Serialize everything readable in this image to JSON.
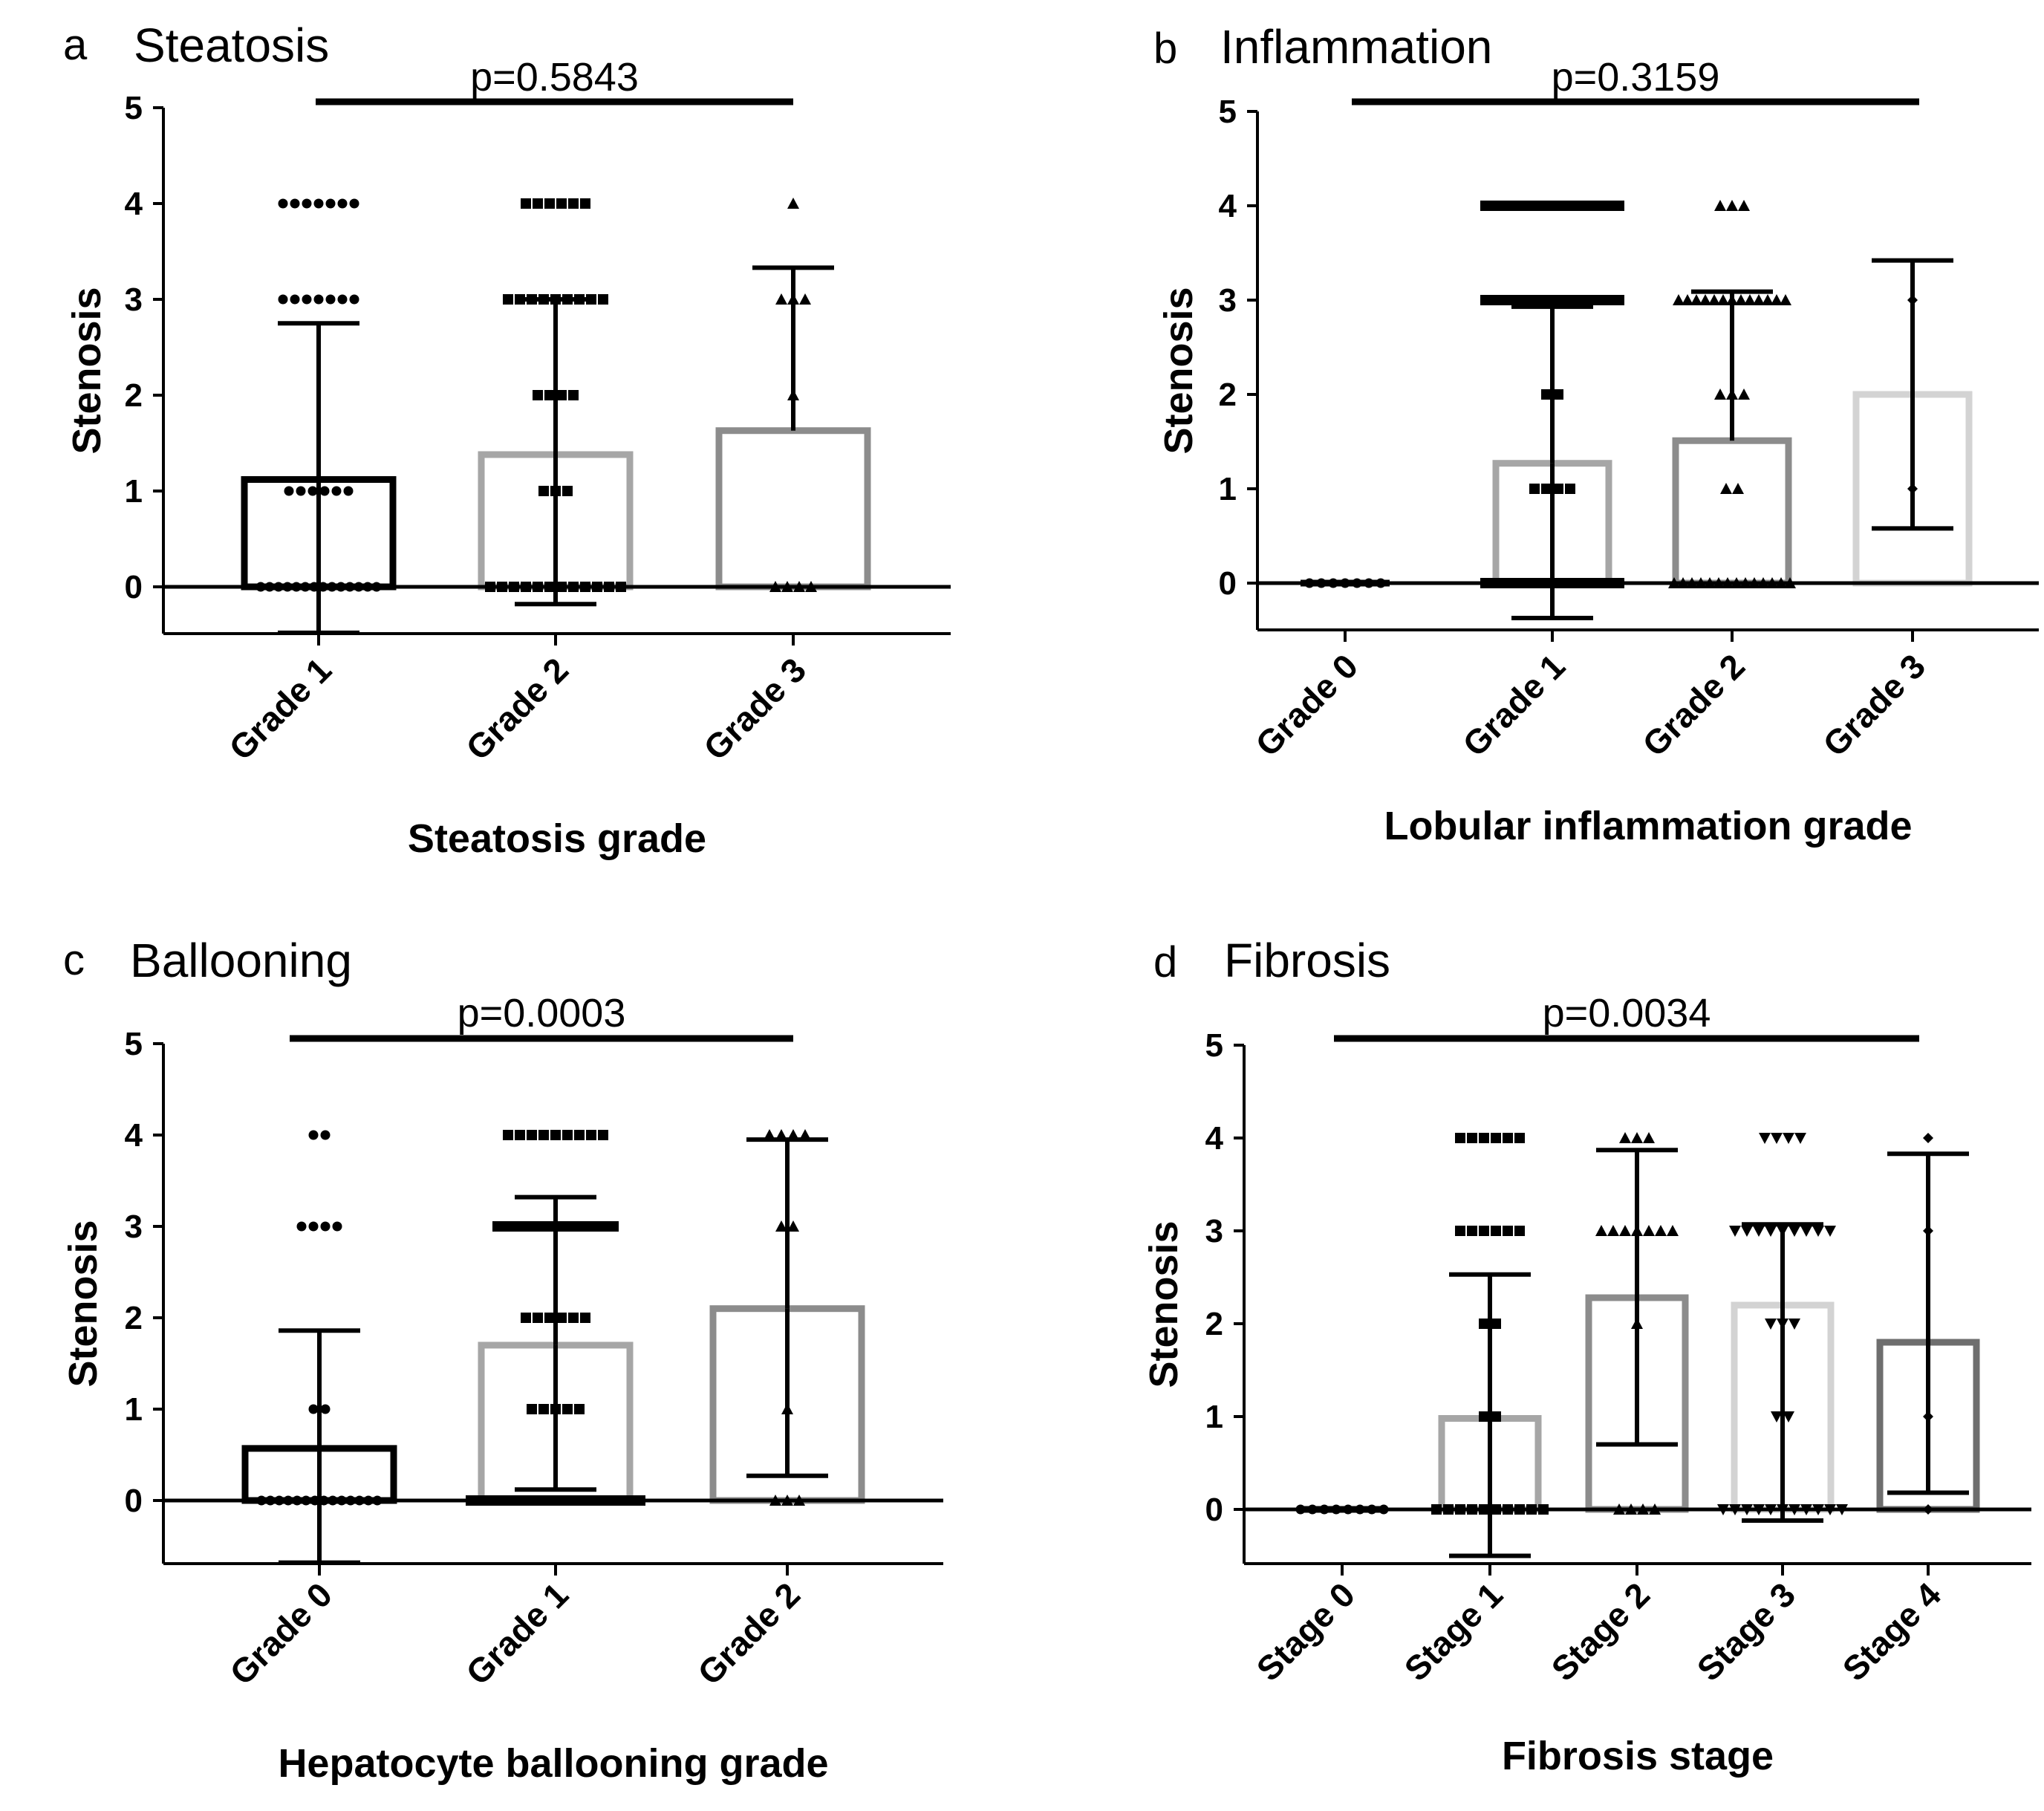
{
  "chart_data": [
    {
      "type": "bar",
      "panel": "a",
      "title": "Steatosis",
      "p_value": "p=0.5843",
      "xlabel": "Steatosis grade",
      "ylabel": "Stenosis",
      "ylim": [
        -0.5,
        5
      ],
      "yticks": [
        "0",
        "1",
        "2",
        "3",
        "4",
        "5"
      ],
      "categories": [
        "Grade 1",
        "Grade 2",
        "Grade 3"
      ],
      "means": [
        1.12,
        1.38,
        1.63
      ],
      "error_upper": [
        2.75,
        3.0,
        3.33
      ],
      "error_lower": [
        -0.48,
        -0.18,
        null
      ],
      "marker": [
        "circle",
        "square",
        "triangle"
      ],
      "bar_colors": [
        "#000000",
        "#a6a6a6",
        "#8c8c8c"
      ],
      "points": [
        {
          "0": 14,
          "1": 6,
          "2": 0,
          "3": 7,
          "4": 7
        },
        {
          "0": 12,
          "1": 3,
          "2": 4,
          "3": 9,
          "4": 6
        },
        {
          "0": 4,
          "1": 0,
          "2": 1,
          "3": 3,
          "4": 1
        }
      ]
    },
    {
      "type": "bar",
      "panel": "b",
      "title": "Inflammation",
      "p_value": "p=0.3159",
      "xlabel": "Lobular inflammation grade",
      "ylabel": "Stenosis",
      "ylim": [
        -0.5,
        5
      ],
      "yticks": [
        "0",
        "1",
        "2",
        "3",
        "4",
        "5"
      ],
      "categories": [
        "Grade 0",
        "Grade 1",
        "Grade 2",
        "Grade 3"
      ],
      "means": [
        0,
        1.27,
        1.51,
        2.0
      ],
      "error_upper": [
        null,
        2.93,
        3.09,
        3.42
      ],
      "error_lower": [
        null,
        -0.37,
        null,
        0.58
      ],
      "marker": [
        "circle",
        "square",
        "triangle",
        "diamond"
      ],
      "bar_colors": [
        "#000000",
        "#a6a6a6",
        "#8c8c8c",
        "#d3d3d3"
      ],
      "points": [
        {
          "0": 7,
          "1": 0,
          "2": 0,
          "3": 0,
          "4": 0
        },
        {
          "0": 16,
          "1": 4,
          "2": 2,
          "3": 16,
          "4": 16
        },
        {
          "0": 14,
          "1": 2,
          "2": 3,
          "3": 13,
          "4": 3
        },
        {
          "0": 0,
          "1": 1,
          "2": 0,
          "3": 1,
          "4": 0
        }
      ]
    },
    {
      "type": "bar",
      "panel": "c",
      "title": "Ballooning",
      "p_value": "p=0.0003",
      "xlabel": "Hepatocyte ballooning grade",
      "ylabel": "Stenosis",
      "ylim": [
        -0.7,
        5
      ],
      "yticks": [
        "0",
        "1",
        "2",
        "3",
        "4",
        "5"
      ],
      "categories": [
        "Grade 0",
        "Grade 1",
        "Grade 2"
      ],
      "means": [
        0.57,
        1.7,
        2.1
      ],
      "error_upper": [
        1.86,
        3.32,
        3.95
      ],
      "error_lower": [
        -0.68,
        0.12,
        0.27
      ],
      "marker": [
        "circle",
        "square",
        "triangle"
      ],
      "bar_colors": [
        "#000000",
        "#a6a6a6",
        "#8c8c8c"
      ],
      "points": [
        {
          "0": 14,
          "1": 2,
          "2": 0,
          "3": 4,
          "4": 2
        },
        {
          "0": 20,
          "1": 5,
          "2": 6,
          "3": 14,
          "4": 9
        },
        {
          "0": 3,
          "1": 1,
          "2": 0,
          "3": 2,
          "4": 4
        }
      ]
    },
    {
      "type": "bar",
      "panel": "d",
      "title": "Fibrosis",
      "p_value": "p=0.0034",
      "xlabel": "Fibrosis stage",
      "ylabel": "Stenosis",
      "ylim": [
        -0.6,
        5
      ],
      "yticks": [
        "0",
        "1",
        "2",
        "3",
        "4",
        "5"
      ],
      "categories": [
        "Stage 0",
        "Stage 1",
        "Stage 2",
        "Stage 3",
        "Stage 4"
      ],
      "means": [
        0,
        0.98,
        2.28,
        2.2,
        1.8
      ],
      "error_upper": [
        null,
        2.53,
        3.87,
        3.07,
        3.83
      ],
      "error_lower": [
        null,
        -0.5,
        0.7,
        -0.12,
        0.18
      ],
      "marker": [
        "circle",
        "square",
        "triangle",
        "inverted-triangle",
        "diamond"
      ],
      "bar_colors": [
        "#000000",
        "#a6a6a6",
        "#8c8c8c",
        "#d3d3d3",
        "#6e6e6e"
      ],
      "points": [
        {
          "0": 8,
          "1": 0,
          "2": 0,
          "3": 0,
          "4": 0
        },
        {
          "0": 10,
          "1": 2,
          "2": 2,
          "3": 6,
          "4": 6
        },
        {
          "0": 4,
          "1": 0,
          "2": 1,
          "3": 7,
          "4": 3
        },
        {
          "0": 11,
          "1": 2,
          "2": 3,
          "3": 9,
          "4": 4
        },
        {
          "0": 1,
          "1": 1,
          "2": 0,
          "3": 1,
          "4": 1
        }
      ]
    }
  ]
}
